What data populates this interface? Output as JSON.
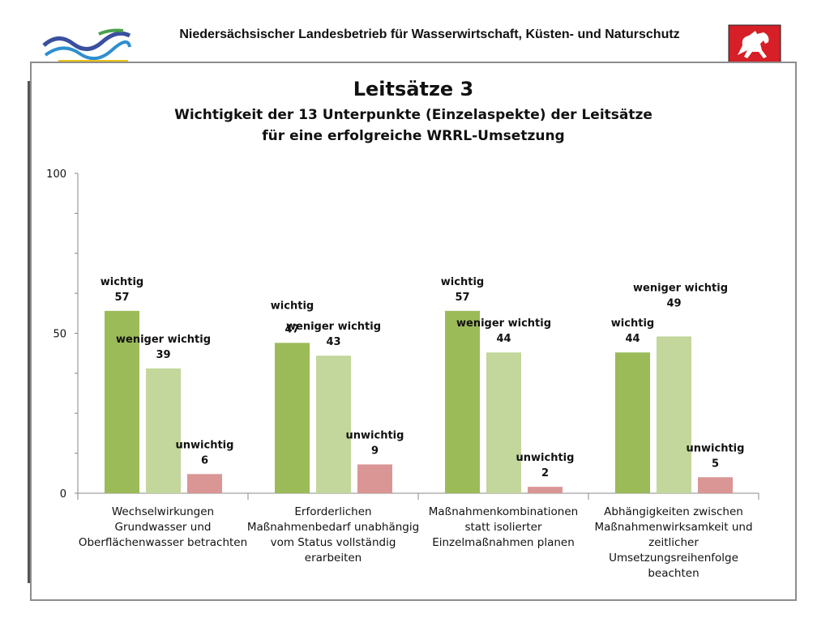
{
  "header": {
    "org_name": "Niedersächsischer Landesbetrieb für Wasserwirtschaft, Küsten- und Naturschutz",
    "logo_left": "nlwkn-wave-logo",
    "logo_right": "lower-saxony-horse-emblem"
  },
  "chart_data": {
    "type": "bar",
    "title": "Leitsätze 3",
    "subtitle_line1": "Wichtigkeit der 13 Unterpunkte (Einzelaspekte) der Leitsätze",
    "subtitle_line2": "für eine erfolgreiche WRRL-Umsetzung",
    "xlabel": "",
    "ylabel": "",
    "ylim": [
      0,
      100
    ],
    "yticks": [
      "0",
      "50",
      "100"
    ],
    "grid": false,
    "categories": [
      [
        "Wechselwirkungen",
        "Grundwasser und",
        "Oberflächenwasser betrachten"
      ],
      [
        "Erforderlichen",
        "Maßnahmenbedarf unabhängig",
        "vom Status vollständig",
        "erarbeiten"
      ],
      [
        "Maßnahmenkombinationen",
        "statt isolierter",
        "Einzelmaßnahmen planen"
      ],
      [
        "Abhängigkeiten zwischen",
        "Maßnahmenwirksamkeit und",
        "zeitlicher",
        "Umsetzungsreihenfolge",
        "beachten"
      ]
    ],
    "series": [
      {
        "name": "wichtig",
        "color": "#9bbb59",
        "values": [
          57,
          47,
          57,
          44
        ]
      },
      {
        "name": "weniger wichtig",
        "color": "#c3d69b",
        "values": [
          39,
          43,
          44,
          49
        ]
      },
      {
        "name": "unwichtig",
        "color": "#d99694",
        "values": [
          6,
          9,
          2,
          5
        ]
      }
    ]
  }
}
